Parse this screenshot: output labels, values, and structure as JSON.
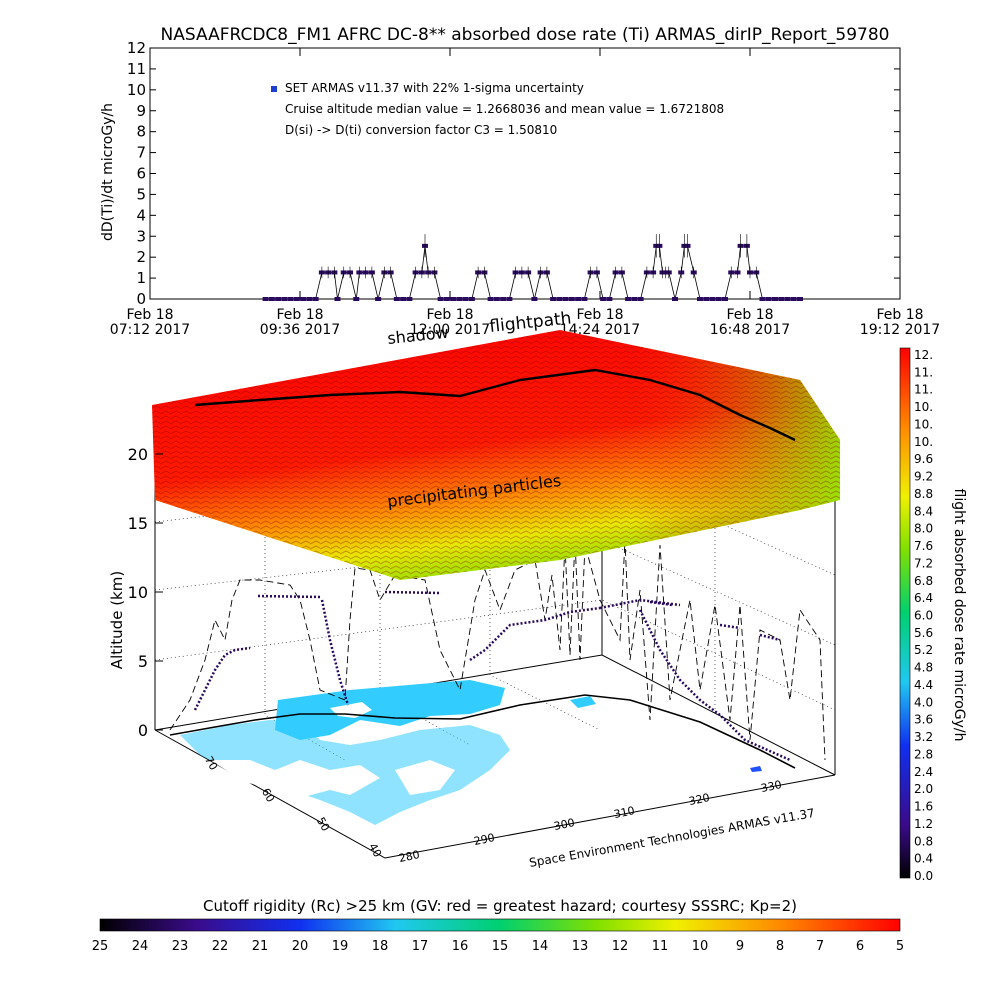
{
  "chart_data": [
    {
      "type": "scatter",
      "title": "NASAAFRCDC8_FM1 AFRC DC-8** absorbed dose rate (Ti) ARMAS_dirIP_Report_59780",
      "ylabel": "dD(Ti)/dt microGy/h",
      "ylim": [
        0,
        12
      ],
      "yticks": [
        "0",
        "1",
        "2",
        "3",
        "4",
        "5",
        "6",
        "7",
        "8",
        "9",
        "10",
        "11",
        "12"
      ],
      "xticks": [
        {
          "line1": "Feb 18",
          "line2": "07:12 2017"
        },
        {
          "line1": "Feb 18",
          "line2": "09:36 2017"
        },
        {
          "line1": "Feb 18",
          "line2": "12:00 2017"
        },
        {
          "line1": "Feb 18",
          "line2": "14:24 2017"
        },
        {
          "line1": "Feb 18",
          "line2": "16:48 2017"
        },
        {
          "line1": "Feb 18",
          "line2": "19:12 2017"
        }
      ],
      "xlim_hours": [
        7.2,
        19.2
      ],
      "legend": {
        "position": "top-left",
        "marker_color": "#1f3fd0",
        "lines": [
          "SET ARMAS v11.37 with 22% 1-sigma uncertainty",
          "Cruise altitude median value = 1.2668036 and mean value = 1.6721808",
          "D(si) -> D(ti) conversion factor C3 = 1.50810"
        ]
      },
      "series": [
        {
          "marker_color": "#2a0a5e",
          "points_hours_value": [
            [
              9.05,
              0
            ],
            [
              9.15,
              0
            ],
            [
              9.25,
              0
            ],
            [
              9.35,
              0
            ],
            [
              9.45,
              0
            ],
            [
              9.55,
              0
            ],
            [
              9.65,
              0
            ],
            [
              9.75,
              0
            ],
            [
              9.85,
              0
            ],
            [
              9.95,
              1.27
            ],
            [
              10.05,
              1.27
            ],
            [
              10.15,
              1.27
            ],
            [
              10.2,
              0
            ],
            [
              10.3,
              1.27
            ],
            [
              10.4,
              1.27
            ],
            [
              10.5,
              0
            ],
            [
              10.55,
              1.27
            ],
            [
              10.65,
              1.27
            ],
            [
              10.75,
              1.27
            ],
            [
              10.85,
              0
            ],
            [
              10.95,
              1.27
            ],
            [
              11.05,
              1.27
            ],
            [
              11.15,
              0
            ],
            [
              11.25,
              0
            ],
            [
              11.35,
              0
            ],
            [
              11.45,
              1.27
            ],
            [
              11.55,
              1.27
            ],
            [
              11.6,
              2.54
            ],
            [
              11.65,
              1.27
            ],
            [
              11.75,
              1.27
            ],
            [
              11.85,
              0
            ],
            [
              11.95,
              0
            ],
            [
              12.05,
              0
            ],
            [
              12.15,
              0
            ],
            [
              12.25,
              0
            ],
            [
              12.35,
              0
            ],
            [
              12.45,
              1.27
            ],
            [
              12.55,
              1.27
            ],
            [
              12.65,
              0
            ],
            [
              12.75,
              0
            ],
            [
              12.85,
              0
            ],
            [
              12.95,
              0
            ],
            [
              13.05,
              1.27
            ],
            [
              13.15,
              1.27
            ],
            [
              13.25,
              1.27
            ],
            [
              13.35,
              0
            ],
            [
              13.45,
              1.27
            ],
            [
              13.55,
              1.27
            ],
            [
              13.65,
              0
            ],
            [
              13.75,
              0
            ],
            [
              13.85,
              0
            ],
            [
              13.95,
              0
            ],
            [
              14.05,
              0
            ],
            [
              14.15,
              0
            ],
            [
              14.25,
              1.27
            ],
            [
              14.35,
              1.27
            ],
            [
              14.45,
              0
            ],
            [
              14.55,
              0
            ],
            [
              14.65,
              1.27
            ],
            [
              14.75,
              1.27
            ],
            [
              14.85,
              0
            ],
            [
              14.95,
              0
            ],
            [
              15.05,
              0
            ],
            [
              15.15,
              1.27
            ],
            [
              15.25,
              1.27
            ],
            [
              15.3,
              2.54
            ],
            [
              15.35,
              2.54
            ],
            [
              15.4,
              1.27
            ],
            [
              15.45,
              1.27
            ],
            [
              15.5,
              1.27
            ],
            [
              15.6,
              0
            ],
            [
              15.7,
              1.27
            ],
            [
              15.75,
              2.54
            ],
            [
              15.8,
              2.54
            ],
            [
              15.9,
              1.27
            ],
            [
              16.0,
              0
            ],
            [
              16.1,
              0
            ],
            [
              16.2,
              0
            ],
            [
              16.3,
              0
            ],
            [
              16.4,
              0
            ],
            [
              16.5,
              1.27
            ],
            [
              16.6,
              1.27
            ],
            [
              16.65,
              2.54
            ],
            [
              16.75,
              2.54
            ],
            [
              16.8,
              1.27
            ],
            [
              16.9,
              1.27
            ],
            [
              17.0,
              0
            ],
            [
              17.1,
              0
            ],
            [
              17.2,
              0
            ],
            [
              17.3,
              0
            ],
            [
              17.4,
              0
            ],
            [
              17.5,
              0
            ],
            [
              17.6,
              0
            ]
          ]
        }
      ]
    },
    {
      "type": "scatter",
      "title": "",
      "zlabel": "Altitude (km)",
      "zlim": [
        0,
        20
      ],
      "zticks": [
        "0",
        "5",
        "10",
        "15",
        "20"
      ],
      "lat_ticks": [
        "70",
        "60",
        "50",
        "40"
      ],
      "lon_ticks": [
        "280",
        "290",
        "300",
        "310",
        "320",
        "330"
      ],
      "annotations": [
        "shadow",
        "flightpath",
        "precipitating particles"
      ],
      "credit": "Space Environment Technologies ARMAS v11.37",
      "colorbar": {
        "label": "flight absorbed dose rate microGy/h",
        "ticks": [
          "12.",
          "11.",
          "11.",
          "10.",
          "10.",
          "10.",
          "9.6",
          "9.2",
          "8.8",
          "8.4",
          "8.0",
          "7.6",
          "7.2",
          "6.8",
          "6.4",
          "6.0",
          "5.6",
          "5.2",
          "4.8",
          "4.4",
          "4.0",
          "3.6",
          "3.2",
          "2.8",
          "2.4",
          "2.0",
          "1.6",
          "1.2",
          "0.8",
          "0.4",
          "0.0"
        ]
      }
    }
  ],
  "bottom_colorbar": {
    "label": "Cutoff rigidity (Rc) >25 km (GV: red = greatest hazard; courtesy SSSRC; Kp=2)",
    "ticks": [
      "25",
      "24",
      "23",
      "22",
      "21",
      "20",
      "19",
      "18",
      "17",
      "16",
      "15",
      "14",
      "13",
      "12",
      "11",
      "10",
      "9",
      "8",
      "7",
      "6",
      "5"
    ]
  },
  "colors": {
    "flight_marker": "#2a0a5e",
    "legend_marker": "#1f3fd0",
    "land": "#ffffff",
    "sea": "#33ccff"
  }
}
